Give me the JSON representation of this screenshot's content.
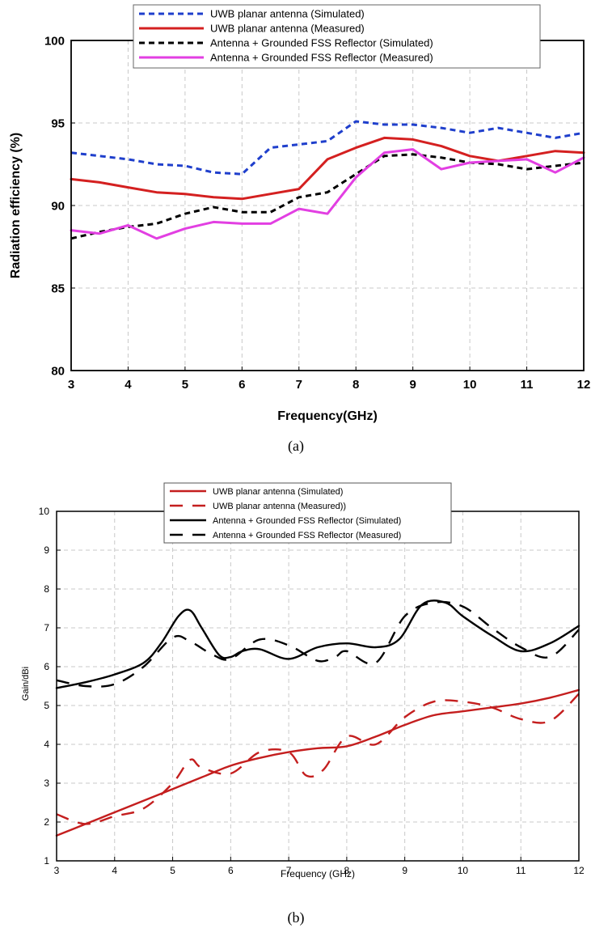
{
  "chart_data": [
    {
      "type": "line",
      "caption": "(a)",
      "xlabel": "Frequency(GHz)",
      "ylabel": "Radiation efficiency (%)",
      "xlim": [
        3,
        12
      ],
      "ylim": [
        80,
        100
      ],
      "xticks": [
        "3",
        "4",
        "5",
        "6",
        "7",
        "8",
        "9",
        "10",
        "11",
        "12"
      ],
      "yticks": [
        "80",
        "85",
        "90",
        "95",
        "100"
      ],
      "grid": true,
      "legend": "top",
      "series": [
        {
          "name": "UWB planar antenna (Simulated)",
          "color": "#1f3fcc",
          "dash": "dashed",
          "x": [
            3,
            3.5,
            4,
            4.5,
            5,
            5.5,
            6,
            6.5,
            7,
            7.5,
            8,
            8.5,
            9,
            9.5,
            10,
            10.5,
            11,
            11.5,
            12
          ],
          "y": [
            93.2,
            93.0,
            92.8,
            92.5,
            92.4,
            92.0,
            91.9,
            93.5,
            93.7,
            93.9,
            95.1,
            94.9,
            94.9,
            94.7,
            94.4,
            94.7,
            94.4,
            94.1,
            94.4
          ]
        },
        {
          "name": "UWB planar antenna (Measured)",
          "color": "#d42020",
          "dash": "solid",
          "x": [
            3,
            3.5,
            4,
            4.5,
            5,
            5.5,
            6,
            6.5,
            7,
            7.5,
            8,
            8.5,
            9,
            9.5,
            10,
            10.5,
            11,
            11.5,
            12
          ],
          "y": [
            91.6,
            91.4,
            91.1,
            90.8,
            90.7,
            90.5,
            90.4,
            90.7,
            91.0,
            92.8,
            93.5,
            94.1,
            94.0,
            93.6,
            93.0,
            92.7,
            93.0,
            93.3,
            93.2
          ]
        },
        {
          "name": "Antenna + Grounded FSS Reflector (Simulated)",
          "color": "#000000",
          "dash": "dashed",
          "x": [
            3,
            3.5,
            4,
            4.5,
            5,
            5.5,
            6,
            6.5,
            7,
            7.5,
            8,
            8.5,
            9,
            9.5,
            10,
            10.5,
            11,
            11.5,
            12
          ],
          "y": [
            88.0,
            88.4,
            88.7,
            88.9,
            89.5,
            89.9,
            89.6,
            89.6,
            90.5,
            90.8,
            91.9,
            93.0,
            93.1,
            92.9,
            92.6,
            92.5,
            92.2,
            92.4,
            92.6
          ]
        },
        {
          "name": "Antenna + Grounded FSS Reflector (Measured)",
          "color": "#e23fe2",
          "dash": "solid",
          "x": [
            3,
            3.5,
            4,
            4.5,
            5,
            5.5,
            6,
            6.5,
            7,
            7.5,
            8,
            8.5,
            9,
            9.5,
            10,
            10.5,
            11,
            11.5,
            12
          ],
          "y": [
            88.5,
            88.3,
            88.8,
            88.0,
            88.6,
            89.0,
            88.9,
            88.9,
            89.8,
            89.5,
            91.7,
            93.2,
            93.4,
            92.2,
            92.6,
            92.7,
            92.8,
            92.0,
            92.9
          ]
        }
      ]
    },
    {
      "type": "line",
      "caption": "(b)",
      "xlabel": "Frequency (GHz)",
      "ylabel": "Gain/dBi",
      "xlim": [
        3,
        12
      ],
      "ylim": [
        1,
        10
      ],
      "xticks": [
        "3",
        "4",
        "5",
        "6",
        "7",
        "8",
        "9",
        "10",
        "11",
        "12"
      ],
      "yticks": [
        "1",
        "2",
        "3",
        "4",
        "5",
        "6",
        "7",
        "8",
        "9",
        "10"
      ],
      "grid": true,
      "legend": "top",
      "series": [
        {
          "name": "UWB planar antenna (Simulated)",
          "color": "#c41e1e",
          "dash": "solid",
          "x": [
            3,
            3.5,
            4,
            4.5,
            5,
            5.5,
            6,
            6.5,
            7,
            7.5,
            8,
            8.5,
            9,
            9.5,
            10,
            10.5,
            11,
            11.5,
            12
          ],
          "y": [
            1.65,
            1.95,
            2.25,
            2.55,
            2.85,
            3.15,
            3.45,
            3.65,
            3.8,
            3.9,
            3.95,
            4.2,
            4.5,
            4.75,
            4.85,
            4.95,
            5.05,
            5.2,
            5.4
          ]
        },
        {
          "name": "UWB planar antenna (Measured))",
          "color": "#c41e1e",
          "dash": "longdash",
          "x": [
            3,
            3.5,
            4,
            4.5,
            5,
            5.3,
            5.5,
            6,
            6.5,
            7,
            7.3,
            7.6,
            8,
            8.5,
            9,
            9.5,
            10,
            10.5,
            11,
            11.5,
            12
          ],
          "y": [
            2.2,
            1.95,
            2.15,
            2.35,
            3.0,
            3.6,
            3.4,
            3.25,
            3.8,
            3.8,
            3.2,
            3.35,
            4.2,
            4.0,
            4.7,
            5.1,
            5.1,
            4.95,
            4.65,
            4.6,
            5.3
          ]
        },
        {
          "name": "Antenna + Grounded FSS Reflector (Simulated)",
          "color": "#000000",
          "dash": "solid",
          "x": [
            3,
            3.5,
            4,
            4.5,
            4.8,
            5.1,
            5.3,
            5.5,
            5.8,
            6,
            6.2,
            6.5,
            7,
            7.5,
            8,
            8.5,
            8.9,
            9.3,
            9.7,
            10,
            10.5,
            11,
            11.5,
            12
          ],
          "y": [
            5.45,
            5.6,
            5.8,
            6.1,
            6.6,
            7.3,
            7.45,
            7.0,
            6.3,
            6.25,
            6.4,
            6.45,
            6.2,
            6.5,
            6.6,
            6.5,
            6.7,
            7.6,
            7.65,
            7.3,
            6.8,
            6.4,
            6.6,
            7.05
          ]
        },
        {
          "name": "Antenna + Grounded FSS Reflector (Measured)",
          "color": "#000000",
          "dash": "longdash",
          "x": [
            3,
            3.5,
            4,
            4.5,
            5,
            5.3,
            5.7,
            6,
            6.5,
            7,
            7.5,
            7.8,
            8,
            8.5,
            9,
            9.5,
            10,
            10.5,
            11,
            11.5,
            12
          ],
          "y": [
            5.65,
            5.5,
            5.55,
            6.0,
            6.75,
            6.65,
            6.3,
            6.2,
            6.7,
            6.55,
            6.15,
            6.25,
            6.4,
            6.1,
            7.3,
            7.65,
            7.55,
            7.0,
            6.5,
            6.25,
            6.95
          ]
        }
      ]
    }
  ]
}
